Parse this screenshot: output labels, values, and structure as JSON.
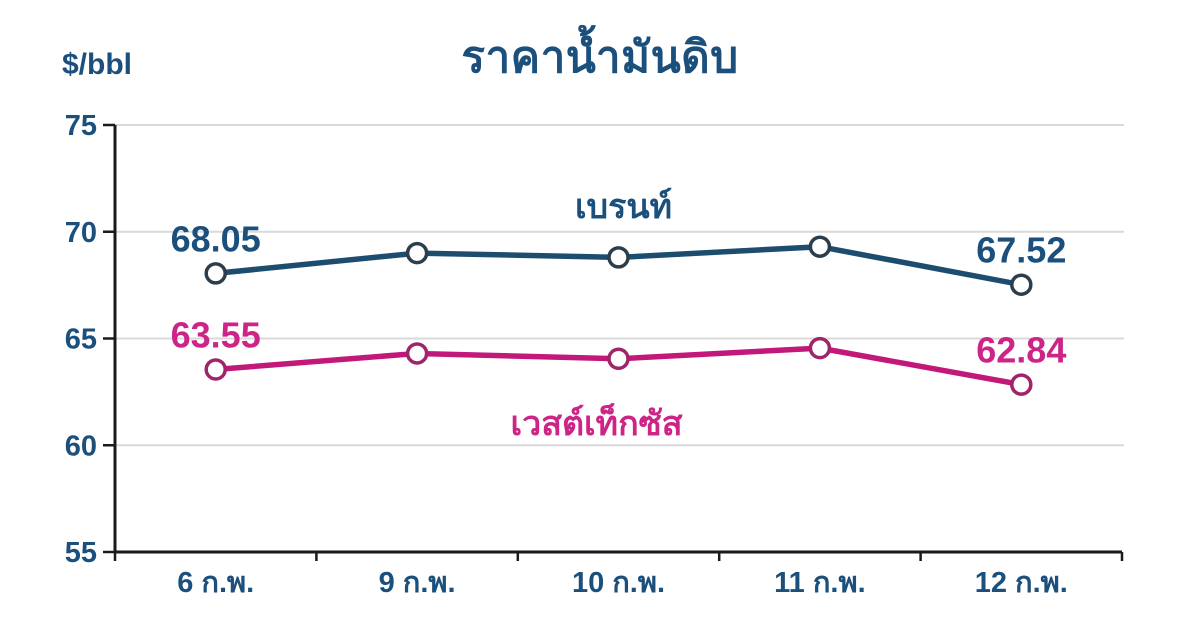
{
  "page": {
    "background": "#ffffff"
  },
  "chart_data": {
    "type": "line",
    "title": "ราคาน้ำมันดิบ",
    "ylabel": "$/bbl",
    "xlabel": "",
    "categories": [
      "6 ก.พ.",
      "9 ก.พ.",
      "10 ก.พ.",
      "11 ก.พ.",
      "12 ก.พ."
    ],
    "series": [
      {
        "name": "เบรนท์",
        "color": "#1d4d6e",
        "label_color": "#1b4f7c",
        "marker": {
          "shape": "circle-open",
          "fill": "#ffffff",
          "stroke": "#2c3e4c"
        },
        "values": [
          68.05,
          69.0,
          68.8,
          69.3,
          67.52
        ],
        "value_labels": {
          "first": "68.05",
          "last": "67.52"
        }
      },
      {
        "name": "เวสต์เท็กซัส",
        "color": "#c2187a",
        "label_color": "#cc2487",
        "marker": {
          "shape": "circle-open",
          "fill": "#ffffff",
          "stroke": "#a02468"
        },
        "values": [
          63.55,
          64.3,
          64.05,
          64.55,
          62.84
        ],
        "value_labels": {
          "first": "63.55",
          "last": "62.84"
        }
      }
    ],
    "ylim": [
      55,
      75
    ],
    "yticks": [
      55,
      60,
      65,
      70,
      75
    ],
    "grid": true,
    "grid_color": "#d9d9d9",
    "axis_color": "#1a1a1a",
    "tick_label_color": "#1b4f7c",
    "legend_position": "series-name-annotations-near-lines"
  }
}
